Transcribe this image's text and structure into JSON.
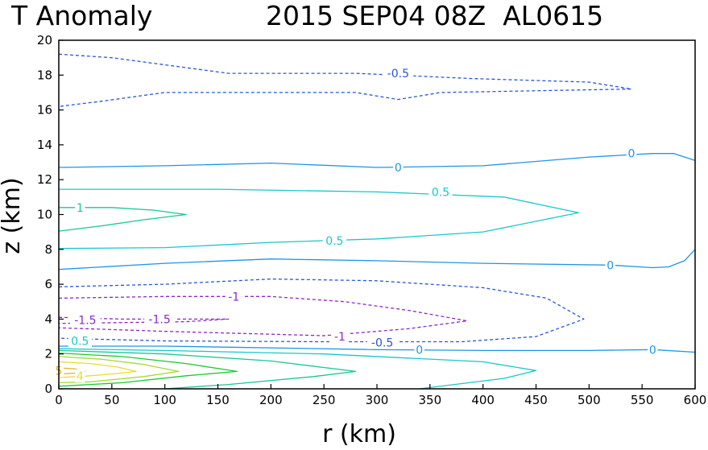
{
  "chart_data": {
    "type": "contour",
    "title_left": "T Anomaly",
    "title_right": "2015 SEP04 08Z  AL0615",
    "xlabel": "r (km)",
    "ylabel": "z (km)",
    "xlim": [
      0,
      600
    ],
    "ylim": [
      0,
      20
    ],
    "xticks": [
      0,
      50,
      100,
      150,
      200,
      250,
      300,
      350,
      400,
      450,
      500,
      550,
      600
    ],
    "yticks": [
      0,
      2,
      4,
      6,
      8,
      10,
      12,
      14,
      16,
      18,
      20
    ],
    "contours": [
      {
        "name": "contour-neg0.5-upper",
        "level": -0.5,
        "color": "#2a55d8",
        "dashed": true,
        "points": [
          [
            0,
            19.2
          ],
          [
            50,
            19.0
          ],
          [
            160,
            18.1
          ],
          [
            280,
            18.1
          ],
          [
            390,
            17.8
          ],
          [
            500,
            17.6
          ],
          [
            540,
            17.2
          ],
          [
            360,
            17.0
          ],
          [
            320,
            16.6
          ],
          [
            280,
            17.0
          ],
          [
            200,
            17.0
          ],
          [
            100,
            17.0
          ],
          [
            40,
            16.5
          ],
          [
            0,
            16.2
          ]
        ]
      },
      {
        "name": "contour-0-upper",
        "level": 0,
        "color": "#1e96e6",
        "dashed": false,
        "points": [
          [
            0,
            12.7
          ],
          [
            100,
            12.8
          ],
          [
            200,
            12.95
          ],
          [
            300,
            12.7
          ],
          [
            400,
            12.8
          ],
          [
            500,
            13.3
          ],
          [
            560,
            13.5
          ],
          [
            580,
            13.5
          ],
          [
            600,
            13.1
          ]
        ]
      },
      {
        "name": "contour-0.5-upper",
        "level": 0.5,
        "color": "#19c8c8",
        "dashed": false,
        "points": [
          [
            0,
            11.45
          ],
          [
            150,
            11.45
          ],
          [
            300,
            11.3
          ],
          [
            420,
            11.0
          ],
          [
            490,
            10.1
          ],
          [
            400,
            9.0
          ],
          [
            300,
            8.6
          ],
          [
            200,
            8.4
          ],
          [
            100,
            8.1
          ],
          [
            0,
            8.05
          ]
        ]
      },
      {
        "name": "contour-1-upper",
        "level": 1,
        "color": "#19c896",
        "dashed": false,
        "points": [
          [
            0,
            10.4
          ],
          [
            50,
            10.4
          ],
          [
            90,
            10.25
          ],
          [
            120,
            10.0
          ],
          [
            80,
            9.7
          ],
          [
            40,
            9.35
          ],
          [
            0,
            9.05
          ]
        ]
      },
      {
        "name": "contour-0-middle",
        "level": 0,
        "color": "#1e96e6",
        "dashed": false,
        "points": [
          [
            0,
            6.85
          ],
          [
            100,
            7.2
          ],
          [
            200,
            7.45
          ],
          [
            300,
            7.35
          ],
          [
            400,
            7.2
          ],
          [
            520,
            7.1
          ],
          [
            560,
            6.95
          ],
          [
            575,
            7.0
          ],
          [
            590,
            7.35
          ],
          [
            600,
            8.0
          ]
        ]
      },
      {
        "name": "contour-neg0.5-middle",
        "level": -0.5,
        "color": "#2a55d8",
        "dashed": true,
        "points": [
          [
            0,
            5.85
          ],
          [
            100,
            6.0
          ],
          [
            200,
            6.3
          ],
          [
            300,
            6.2
          ],
          [
            400,
            5.8
          ],
          [
            460,
            5.2
          ],
          [
            495,
            4.0
          ],
          [
            450,
            3.0
          ],
          [
            380,
            2.7
          ],
          [
            250,
            2.7
          ],
          [
            100,
            2.75
          ],
          [
            0,
            2.9
          ]
        ]
      },
      {
        "name": "contour-neg1",
        "level": -1,
        "color": "#8c28c8",
        "dashed": true,
        "points": [
          [
            0,
            5.2
          ],
          [
            100,
            5.3
          ],
          [
            200,
            5.3
          ],
          [
            270,
            5.0
          ],
          [
            330,
            4.5
          ],
          [
            385,
            3.9
          ],
          [
            330,
            3.45
          ],
          [
            250,
            3.05
          ],
          [
            100,
            3.3
          ],
          [
            0,
            3.5
          ]
        ]
      },
      {
        "name": "contour-neg1.5",
        "level": -1.5,
        "color": "#8c28c8",
        "dashed": true,
        "points": [
          [
            0,
            4.1
          ],
          [
            60,
            4.0
          ],
          [
            120,
            4.0
          ],
          [
            160,
            4.0
          ],
          [
            120,
            3.85
          ],
          [
            60,
            3.8
          ],
          [
            0,
            3.75
          ]
        ]
      },
      {
        "name": "contour-0-lower",
        "level": 0,
        "color": "#1e96e6",
        "dashed": false,
        "points": [
          [
            0,
            2.45
          ],
          [
            100,
            2.45
          ],
          [
            300,
            2.25
          ],
          [
            400,
            2.2
          ],
          [
            500,
            2.2
          ],
          [
            560,
            2.25
          ],
          [
            600,
            2.1
          ]
        ]
      },
      {
        "name": "contour-0.5-lower",
        "level": 0.5,
        "color": "#19c8c8",
        "dashed": false,
        "points": [
          [
            0,
            2.3
          ],
          [
            100,
            2.2
          ],
          [
            250,
            2.0
          ],
          [
            400,
            1.55
          ],
          [
            450,
            1.05
          ],
          [
            420,
            0.6
          ],
          [
            340,
            0
          ]
        ]
      },
      {
        "name": "contour-1-lower",
        "level": 1,
        "color": "#19c896",
        "dashed": false,
        "points": [
          [
            0,
            2.2
          ],
          [
            100,
            2.0
          ],
          [
            200,
            1.6
          ],
          [
            280,
            1.0
          ],
          [
            240,
            0.7
          ],
          [
            160,
            0.25
          ],
          [
            100,
            0
          ]
        ]
      },
      {
        "name": "contour-2-lower",
        "level": 2,
        "color": "#1ec832",
        "dashed": false,
        "points": [
          [
            0,
            2.05
          ],
          [
            60,
            1.85
          ],
          [
            120,
            1.45
          ],
          [
            168,
            1.0
          ],
          [
            120,
            0.75
          ],
          [
            60,
            0.35
          ],
          [
            0,
            0.15
          ]
        ]
      },
      {
        "name": "contour-3-lower",
        "level": 3,
        "color": "#a0dc32",
        "dashed": false,
        "points": [
          [
            0,
            1.85
          ],
          [
            40,
            1.7
          ],
          [
            80,
            1.4
          ],
          [
            113,
            1.0
          ],
          [
            80,
            0.7
          ],
          [
            30,
            0.4
          ],
          [
            0,
            0.35
          ]
        ]
      },
      {
        "name": "contour-4-lower",
        "level": 4,
        "color": "#e6dc32",
        "dashed": false,
        "points": [
          [
            0,
            1.55
          ],
          [
            30,
            1.45
          ],
          [
            55,
            1.25
          ],
          [
            73,
            1.0
          ],
          [
            50,
            0.85
          ],
          [
            20,
            0.7
          ],
          [
            0,
            0.65
          ]
        ]
      },
      {
        "name": "contour-5-lower",
        "level": 5,
        "color": "#e6af2d",
        "dashed": false,
        "points": [
          [
            0,
            1.2
          ],
          [
            15,
            1.15
          ],
          [
            25,
            1.0
          ],
          [
            15,
            0.9
          ],
          [
            0,
            0.85
          ]
        ]
      }
    ],
    "labels": [
      {
        "text": "-0.5",
        "x": 320,
        "y": 18.1,
        "color": "#2a55d8"
      },
      {
        "text": "0",
        "x": 320,
        "y": 12.7,
        "color": "#1e96e6"
      },
      {
        "text": "0",
        "x": 540,
        "y": 13.5,
        "color": "#1e96e6"
      },
      {
        "text": "0.5",
        "x": 360,
        "y": 11.3,
        "color": "#19c8c8"
      },
      {
        "text": "1",
        "x": 20,
        "y": 10.4,
        "color": "#19c896"
      },
      {
        "text": "0.5",
        "x": 260,
        "y": 8.5,
        "color": "#19c8c8"
      },
      {
        "text": "0",
        "x": 520,
        "y": 7.1,
        "color": "#1e96e6"
      },
      {
        "text": "-1",
        "x": 165,
        "y": 5.3,
        "color": "#8c28c8"
      },
      {
        "text": "-1.5",
        "x": 25,
        "y": 3.95,
        "color": "#8c28c8"
      },
      {
        "text": "-1.5",
        "x": 95,
        "y": 4.0,
        "color": "#8c28c8"
      },
      {
        "text": "-1",
        "x": 265,
        "y": 3.0,
        "color": "#8c28c8"
      },
      {
        "text": "-0.5",
        "x": 305,
        "y": 2.65,
        "color": "#2a55d8"
      },
      {
        "text": "0.5",
        "x": 20,
        "y": 2.75,
        "color": "#19c8c8"
      },
      {
        "text": "0",
        "x": 340,
        "y": 2.25,
        "color": "#1e96e6"
      },
      {
        "text": "0",
        "x": 560,
        "y": 2.25,
        "color": "#1e96e6"
      },
      {
        "text": "4",
        "x": 20,
        "y": 0.75,
        "color": "#e6dc32"
      },
      {
        "text": "5",
        "x": 0,
        "y": 1.05,
        "color": "#e6af2d"
      }
    ]
  }
}
